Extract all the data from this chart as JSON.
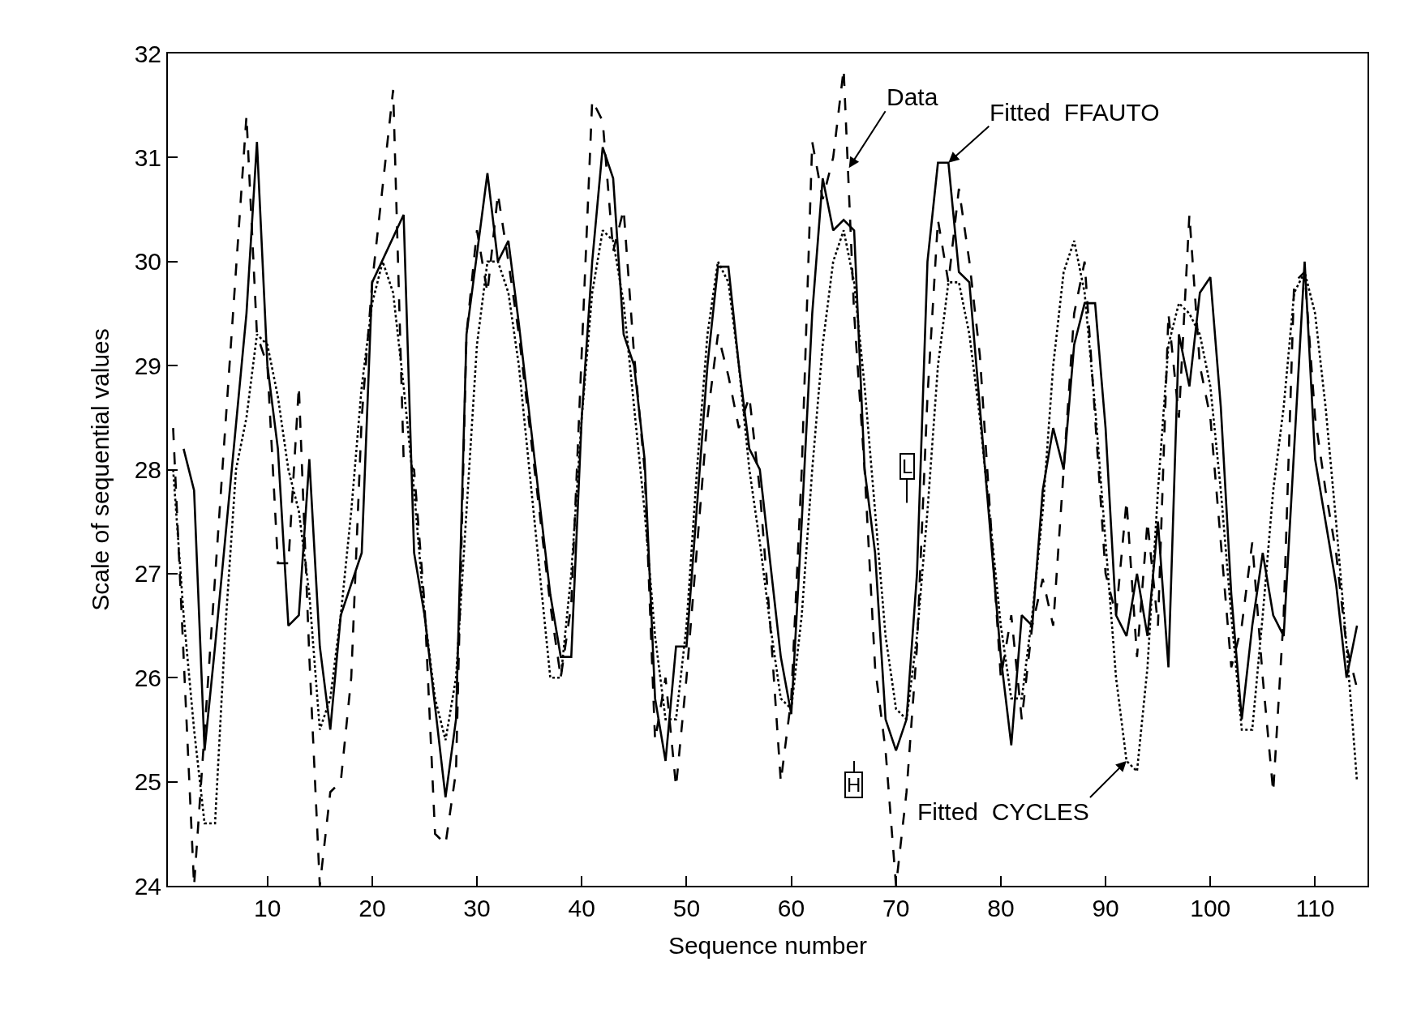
{
  "chart_data": {
    "type": "line",
    "xlabel": "Sequence number",
    "ylabel": "Scale of sequential values",
    "xlim": [
      0.5,
      115
    ],
    "xticks": [
      10,
      20,
      30,
      40,
      50,
      60,
      70,
      80,
      90,
      100,
      110
    ],
    "ylim": [
      24,
      32
    ],
    "yticks": [
      24,
      25,
      26,
      27,
      28,
      29,
      30,
      31,
      32
    ],
    "series": [
      {
        "color": "#000000",
        "line_style": "dashed",
        "x": [
          1,
          3,
          8,
          9,
          10,
          11,
          12,
          13,
          14,
          15,
          16,
          17,
          18,
          19,
          20,
          22,
          23,
          24,
          25,
          26,
          27,
          28,
          29,
          30,
          31,
          32,
          33,
          34,
          37,
          38,
          39,
          41,
          42,
          43,
          44,
          45,
          46,
          47,
          48,
          49,
          50,
          52,
          53,
          54,
          55,
          56,
          57,
          58,
          59,
          60,
          61,
          62,
          63,
          64,
          65,
          66,
          67,
          68,
          69,
          70,
          71,
          72,
          73,
          74,
          75,
          76,
          77,
          78,
          80,
          81,
          82,
          83,
          84,
          85,
          86,
          87,
          88,
          89,
          90,
          91,
          92,
          93,
          94,
          95,
          96,
          97,
          98,
          99,
          100,
          102,
          103,
          104,
          105,
          106,
          107,
          108,
          109,
          110,
          111,
          112,
          113,
          114
        ],
        "values": [
          28.4,
          24.0,
          31.4,
          29.3,
          29.0,
          27.1,
          27.1,
          28.8,
          26.2,
          24.0,
          24.9,
          25.0,
          26.0,
          28.5,
          29.8,
          31.65,
          28.1,
          28.0,
          26.7,
          24.5,
          24.4,
          25.1,
          29.3,
          30.3,
          29.7,
          30.65,
          30.0,
          29.3,
          26.7,
          26.0,
          26.7,
          31.55,
          31.35,
          30.1,
          30.5,
          29.1,
          28.0,
          25.4,
          26.0,
          24.95,
          26.0,
          28.5,
          29.3,
          28.9,
          28.4,
          28.7,
          27.8,
          26.5,
          25.0,
          25.8,
          28.0,
          31.15,
          30.6,
          31.0,
          31.85,
          29.5,
          28.0,
          26.1,
          25.3,
          24.0,
          24.9,
          26.3,
          28.7,
          30.4,
          29.8,
          30.7,
          30.0,
          29.1,
          26.0,
          26.6,
          25.6,
          26.5,
          26.95,
          26.5,
          28.0,
          29.5,
          30.0,
          28.5,
          27.0,
          26.6,
          27.7,
          26.2,
          27.5,
          26.5,
          29.5,
          28.5,
          30.45,
          29.0,
          28.5,
          26.1,
          26.5,
          27.3,
          26.0,
          24.9,
          26.6,
          29.8,
          29.9,
          28.5,
          27.8,
          27.2,
          26.3,
          25.9
        ]
      },
      {
        "color": "#000000",
        "line_style": "solid",
        "x": [
          2,
          3,
          4,
          5,
          8,
          9,
          10,
          11,
          12,
          13,
          14,
          15,
          16,
          17,
          19,
          20,
          23,
          24,
          25,
          27,
          28,
          29,
          31,
          32,
          33,
          34,
          37,
          38,
          39,
          40,
          41,
          42,
          43,
          44,
          45,
          46,
          47,
          48,
          49,
          50,
          52,
          53,
          54,
          55,
          56,
          57,
          59,
          60,
          61,
          62,
          63,
          64,
          65,
          66,
          67,
          68,
          69,
          70,
          71,
          72,
          73,
          74,
          75,
          76,
          77,
          80,
          81,
          82,
          83,
          84,
          85,
          86,
          87,
          88,
          89,
          90,
          91,
          92,
          93,
          94,
          95,
          96,
          97,
          98,
          99,
          100,
          101,
          102,
          103,
          104,
          105,
          106,
          107,
          109,
          110,
          111,
          112,
          113,
          114
        ],
        "values": [
          28.2,
          27.8,
          25.3,
          26.3,
          29.5,
          31.15,
          29.0,
          28.2,
          26.5,
          26.6,
          28.1,
          26.3,
          25.5,
          26.6,
          27.2,
          29.8,
          30.45,
          27.2,
          26.6,
          24.85,
          25.6,
          29.3,
          30.85,
          30.0,
          30.2,
          29.4,
          26.8,
          26.2,
          26.2,
          28.5,
          30.0,
          31.1,
          30.8,
          29.3,
          29.0,
          28.1,
          25.8,
          25.2,
          26.3,
          26.3,
          29.0,
          29.95,
          29.95,
          29.0,
          28.2,
          28.0,
          26.2,
          25.65,
          27.5,
          29.5,
          30.8,
          30.3,
          30.4,
          30.3,
          28.0,
          27.2,
          25.6,
          25.3,
          25.6,
          27.0,
          30.0,
          30.95,
          30.95,
          29.9,
          29.8,
          26.2,
          25.35,
          26.6,
          26.5,
          27.8,
          28.4,
          28.0,
          29.2,
          29.6,
          29.6,
          28.4,
          26.6,
          26.4,
          27.0,
          26.4,
          27.5,
          26.1,
          29.3,
          28.8,
          29.7,
          29.85,
          28.6,
          26.8,
          25.6,
          26.5,
          27.2,
          26.6,
          26.4,
          30.0,
          28.1,
          27.5,
          26.9,
          26.0,
          26.5
        ]
      },
      {
        "color": "#000000",
        "line_style": "dotted",
        "x": [
          1,
          2,
          3,
          4,
          5,
          6,
          7,
          8,
          9,
          10,
          11,
          12,
          13,
          14,
          15,
          16,
          17,
          18,
          19,
          20,
          21,
          22,
          23,
          24,
          25,
          26,
          27,
          28,
          29,
          30,
          31,
          32,
          33,
          34,
          35,
          36,
          37,
          38,
          39,
          40,
          41,
          42,
          43,
          44,
          45,
          46,
          47,
          48,
          49,
          50,
          51,
          52,
          53,
          54,
          55,
          56,
          57,
          58,
          59,
          60,
          61,
          62,
          63,
          64,
          65,
          66,
          67,
          68,
          69,
          70,
          71,
          72,
          73,
          74,
          75,
          76,
          77,
          78,
          79,
          80,
          81,
          82,
          83,
          84,
          85,
          86,
          87,
          88,
          89,
          90,
          91,
          92,
          93,
          94,
          95,
          96,
          97,
          98,
          99,
          100,
          101,
          102,
          103,
          104,
          105,
          106,
          107,
          108,
          109,
          110,
          111,
          112,
          113,
          114
        ],
        "values": [
          28.0,
          26.6,
          25.5,
          24.6,
          24.6,
          26.5,
          28.0,
          28.5,
          29.3,
          29.2,
          28.7,
          28.0,
          27.6,
          26.8,
          25.5,
          25.8,
          26.6,
          27.6,
          28.8,
          29.6,
          30.0,
          29.7,
          28.8,
          27.8,
          26.6,
          25.8,
          25.4,
          26.0,
          27.6,
          29.2,
          30.0,
          30.0,
          29.7,
          29.0,
          28.0,
          27.0,
          26.0,
          26.0,
          27.0,
          28.5,
          29.7,
          30.3,
          30.2,
          29.6,
          28.6,
          27.6,
          26.4,
          25.6,
          25.6,
          26.5,
          28.0,
          29.3,
          30.0,
          29.8,
          29.0,
          28.0,
          27.3,
          26.5,
          25.8,
          25.7,
          26.6,
          28.0,
          29.2,
          30.0,
          30.3,
          29.8,
          28.8,
          27.6,
          26.4,
          25.7,
          25.6,
          26.4,
          27.6,
          29.0,
          29.8,
          29.8,
          29.3,
          28.5,
          27.5,
          26.5,
          25.8,
          25.8,
          26.6,
          27.6,
          29.0,
          29.9,
          30.2,
          29.7,
          28.6,
          27.3,
          26.0,
          25.2,
          25.1,
          26.1,
          27.8,
          29.2,
          29.6,
          29.5,
          29.3,
          28.8,
          27.8,
          26.6,
          25.5,
          25.5,
          26.6,
          27.8,
          28.6,
          29.7,
          29.9,
          29.5,
          28.6,
          27.5,
          26.3,
          25.0
        ]
      }
    ],
    "annotations": [
      {
        "text": "Data",
        "x": 65.5,
        "y": 30.9
      },
      {
        "text": "Fitted  FFAUTO",
        "x": 75,
        "y": 30.95
      },
      {
        "text": "Fitted  CYCLES",
        "x": 92,
        "y": 25.2
      },
      "L",
      "H"
    ]
  }
}
